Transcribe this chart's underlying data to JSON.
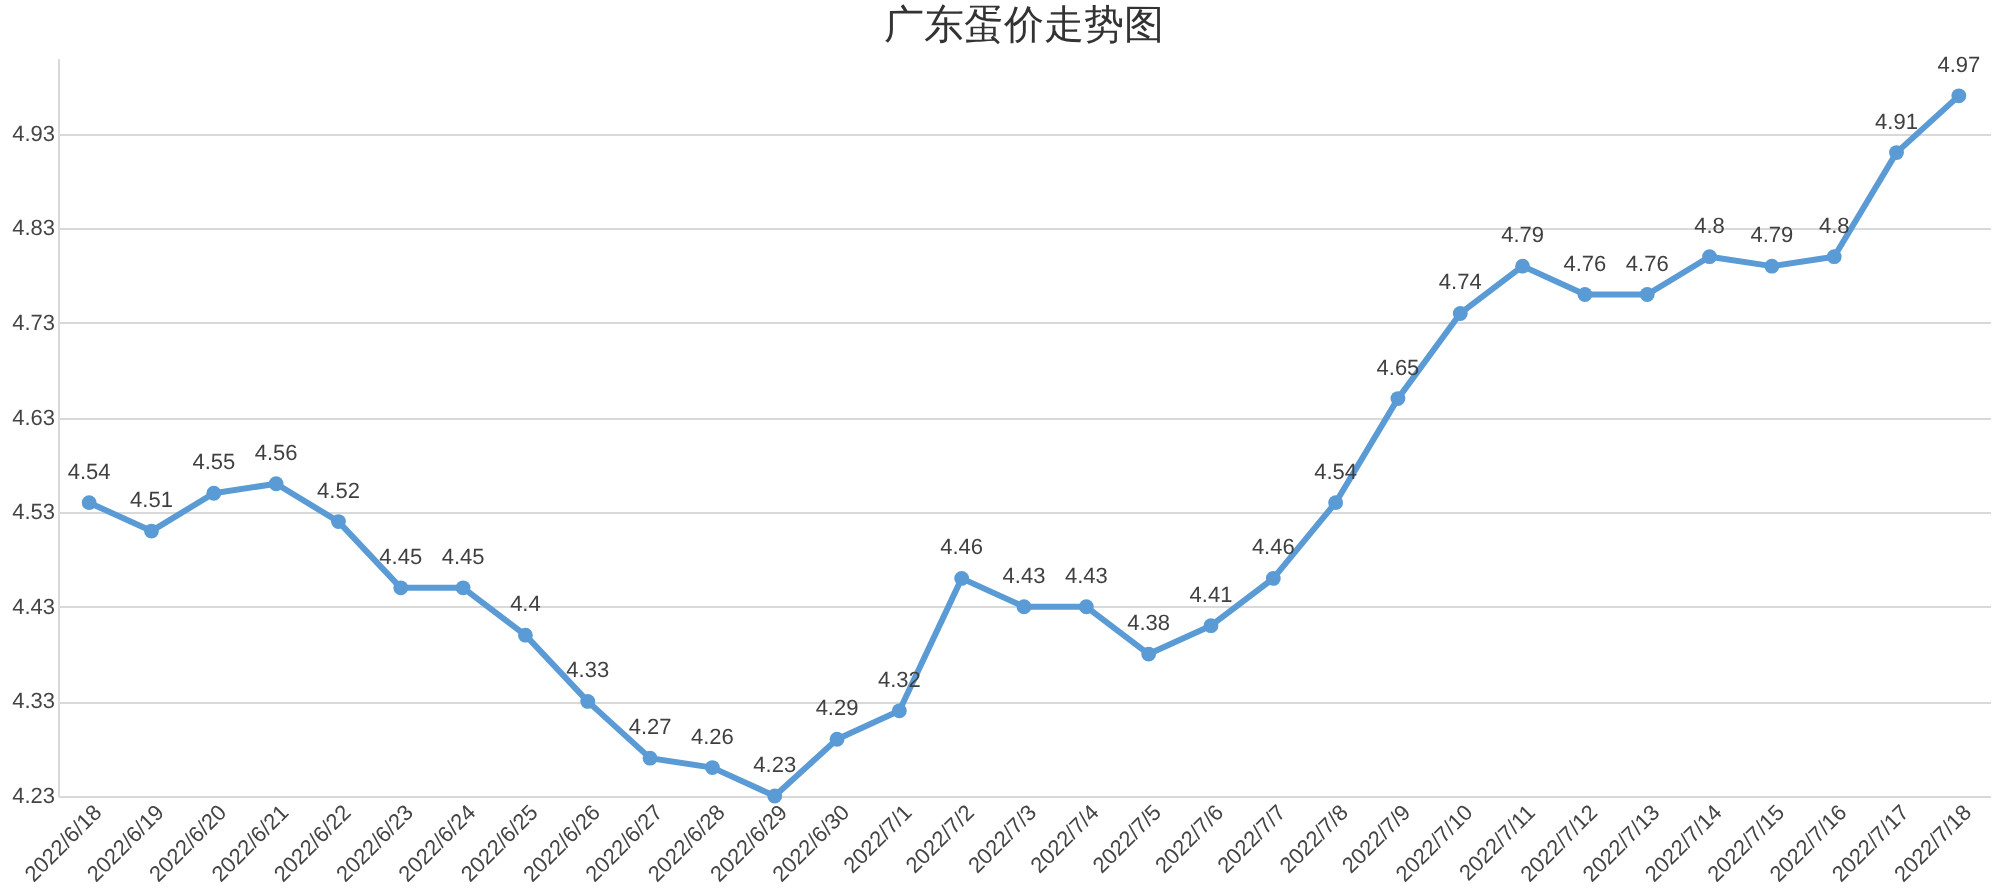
{
  "chart_data": {
    "type": "line",
    "title": "广东蛋价走势图",
    "categories": [
      "2022/6/18",
      "2022/6/19",
      "2022/6/20",
      "2022/6/21",
      "2022/6/22",
      "2022/6/23",
      "2022/6/24",
      "2022/6/25",
      "2022/6/26",
      "2022/6/27",
      "2022/6/28",
      "2022/6/29",
      "2022/6/30",
      "2022/7/1",
      "2022/7/2",
      "2022/7/3",
      "2022/7/4",
      "2022/7/5",
      "2022/7/6",
      "2022/7/7",
      "2022/7/8",
      "2022/7/9",
      "2022/7/10",
      "2022/7/11",
      "2022/7/12",
      "2022/7/13",
      "2022/7/14",
      "2022/7/15",
      "2022/7/16",
      "2022/7/17",
      "2022/7/18"
    ],
    "series": [
      {
        "color": "#5b9bd5",
        "values": [
          4.54,
          4.51,
          4.55,
          4.56,
          4.52,
          4.45,
          4.45,
          4.4,
          4.33,
          4.27,
          4.26,
          4.23,
          4.29,
          4.32,
          4.46,
          4.43,
          4.43,
          4.38,
          4.41,
          4.46,
          4.54,
          4.65,
          4.74,
          4.79,
          4.76,
          4.76,
          4.8,
          4.79,
          4.8,
          4.91,
          4.97
        ]
      }
    ],
    "ylim": [
      4.23,
      5.01
    ],
    "yticks": [
      4.23,
      4.33,
      4.43,
      4.53,
      4.63,
      4.73,
      4.83,
      4.93
    ],
    "grid": "y",
    "marker": "circle",
    "line_style": "solid",
    "data_labels": true
  }
}
